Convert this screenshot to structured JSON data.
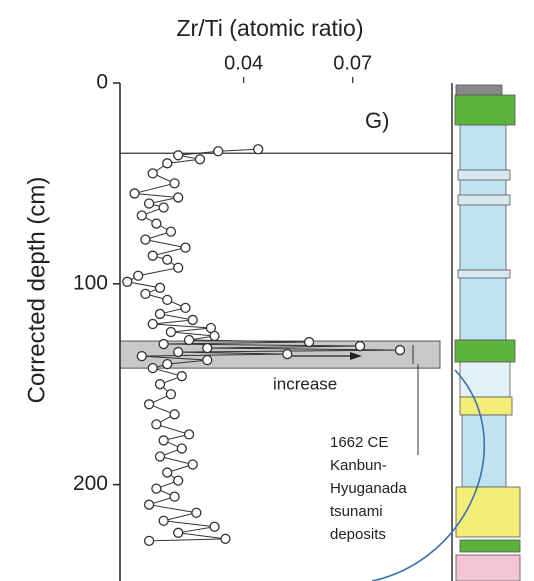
{
  "chart_data": {
    "type": "line",
    "x_label": "Zr/Ti (atomic ratio)",
    "y_label": "Corrected depth (cm)",
    "xlim": [
      0.006,
      0.094
    ],
    "xticks": [
      0.04,
      0.07
    ],
    "ylim": [
      0,
      248
    ],
    "yticks": [
      0,
      100,
      200
    ],
    "y_inverted": true,
    "series": [
      {
        "color": "#333333",
        "x": [
          0.044,
          0.033,
          0.022,
          0.028,
          0.019,
          0.015,
          0.021,
          0.01,
          0.022,
          0.014,
          0.018,
          0.012,
          0.016,
          0.02,
          0.013,
          0.024,
          0.015,
          0.019,
          0.022,
          0.011,
          0.008,
          0.017,
          0.013,
          0.019,
          0.024,
          0.017,
          0.026,
          0.015,
          0.031,
          0.02,
          0.032,
          0.025,
          0.058,
          0.018,
          0.072,
          0.03,
          0.083,
          0.022,
          0.052,
          0.012,
          0.03,
          0.019,
          0.015,
          0.023,
          0.017,
          0.02,
          0.014,
          0.021,
          0.016,
          0.025,
          0.018,
          0.023,
          0.017,
          0.026,
          0.019,
          0.022,
          0.016,
          0.021,
          0.014,
          0.027,
          0.018,
          0.032,
          0.022,
          0.035,
          0.014
        ],
        "y": [
          33,
          34,
          36,
          38,
          40,
          45,
          50,
          55,
          57,
          60,
          62,
          66,
          70,
          74,
          78,
          82,
          86,
          88,
          92,
          96,
          99,
          102,
          105,
          108,
          112,
          115,
          118,
          120,
          122,
          124,
          126,
          128,
          129,
          130,
          131,
          132,
          133,
          134,
          135,
          136,
          138,
          140,
          142,
          146,
          150,
          155,
          160,
          165,
          170,
          175,
          178,
          182,
          186,
          190,
          194,
          198,
          202,
          206,
          210,
          214,
          218,
          221,
          224,
          227,
          228
        ]
      }
    ],
    "reference_line": 35,
    "highlight_band": [
      128.5,
      142
    ],
    "panel_label": "G)",
    "arrow_label": "increase",
    "event_label": [
      "1662 CE",
      "Kanbun-",
      "Hyuganada",
      "tsunami",
      "deposits"
    ]
  }
}
